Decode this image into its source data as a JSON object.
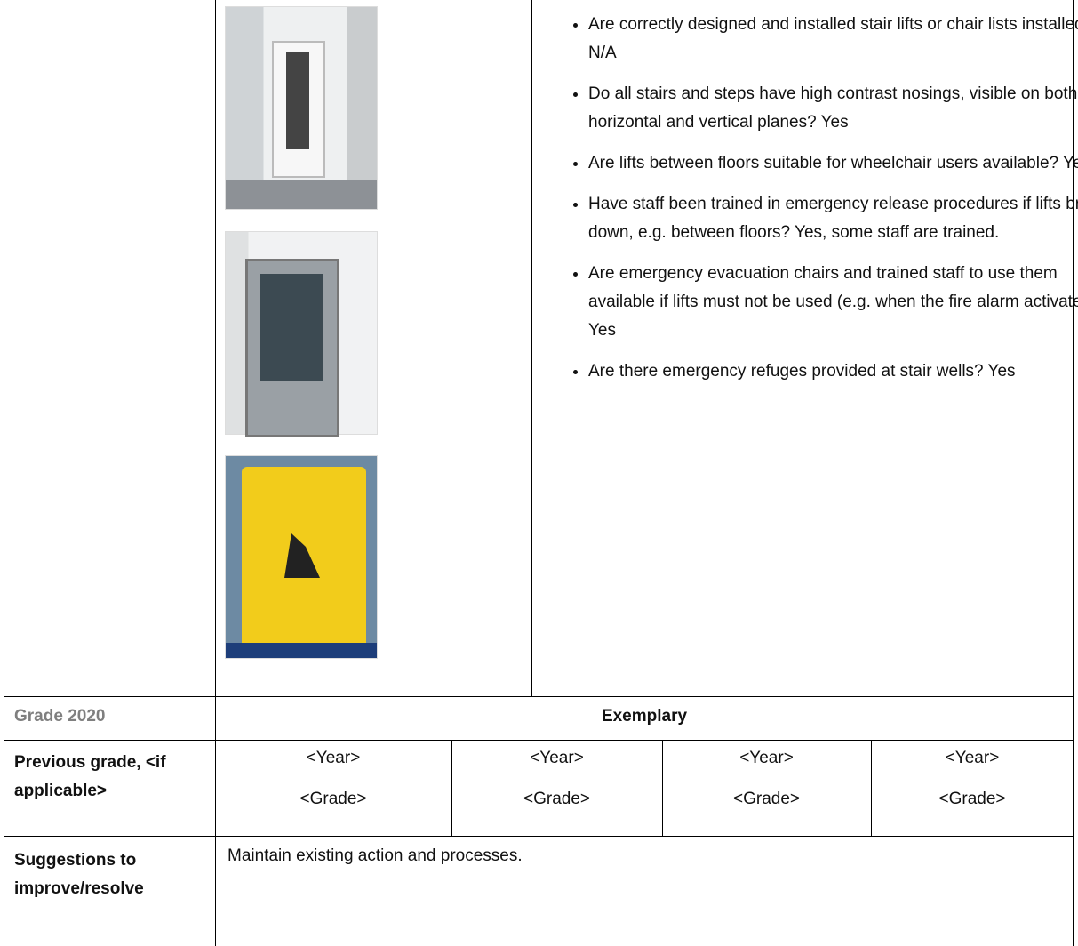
{
  "checklist": {
    "items": [
      "Are correctly designed and installed stair lifts or chair lists installed? N/A",
      "Do all stairs and steps have high contrast nosings, visible on both horizontal and vertical planes? Yes",
      "Are lifts between floors suitable for wheelchair users available? Yes",
      "Have staff been trained in emergency release procedures if lifts break down, e.g. between floors? Yes, some staff are trained.",
      "Are emergency evacuation chairs and trained staff to use them available if lifts must not be used (e.g. when the fire alarm activates)? Yes",
      "Are there emergency refuges provided at stair wells? Yes"
    ]
  },
  "grade": {
    "label": "Grade 2020",
    "value": "Exemplary"
  },
  "previous": {
    "label": "Previous grade, <if applicable>",
    "entries": [
      {
        "year": "<Year>",
        "grade": "<Grade>"
      },
      {
        "year": "<Year>",
        "grade": "<Grade>"
      },
      {
        "year": "<Year>",
        "grade": "<Grade>"
      },
      {
        "year": "<Year>",
        "grade": "<Grade>"
      }
    ]
  },
  "suggestions": {
    "label": "Suggestions to improve/resolve",
    "text": "Maintain existing action and processes."
  }
}
